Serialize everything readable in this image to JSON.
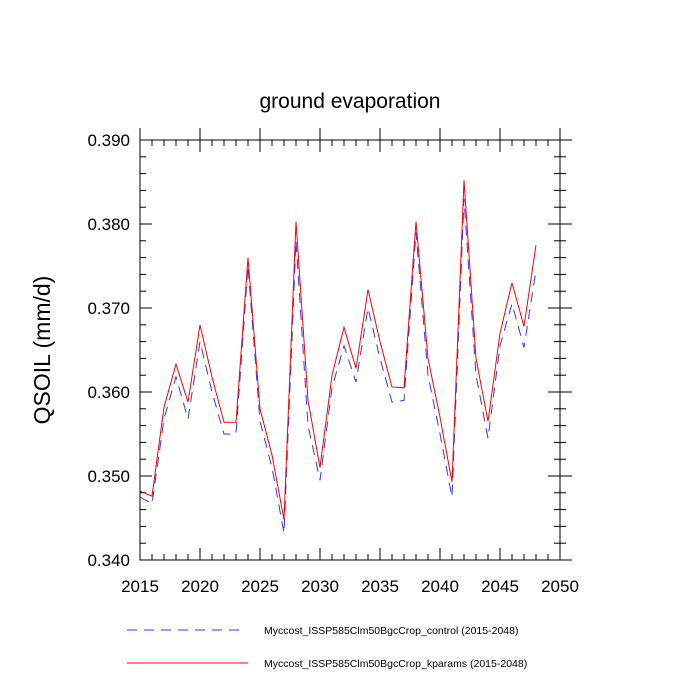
{
  "chart_data": {
    "type": "line",
    "title": "ground evaporation",
    "xlabel": "",
    "ylabel": "QSOIL  (mm/d)",
    "xlim": [
      2015,
      2050
    ],
    "ylim": [
      0.34,
      0.39
    ],
    "xticks": [
      2015,
      2020,
      2025,
      2030,
      2035,
      2040,
      2045,
      2050
    ],
    "xtick_labels": [
      "2015",
      "2020",
      "2025",
      "2030",
      "2035",
      "2040",
      "2045",
      "2050"
    ],
    "yticks": [
      0.34,
      0.35,
      0.36,
      0.37,
      0.38,
      0.39
    ],
    "ytick_labels": [
      "0.340",
      "0.350",
      "0.360",
      "0.370",
      "0.380",
      "0.390"
    ],
    "x": [
      2015,
      2016,
      2017,
      2018,
      2019,
      2020,
      2021,
      2022,
      2023,
      2024,
      2025,
      2026,
      2027,
      2028,
      2029,
      2030,
      2031,
      2032,
      2033,
      2034,
      2035,
      2036,
      2037,
      2038,
      2039,
      2040,
      2041,
      2042,
      2043,
      2044,
      2045,
      2046,
      2047,
      2048
    ],
    "series": [
      {
        "name": "Myccost_ISSP585Clm50BgcCrop_control (2015-2048)",
        "color": "#3333ff",
        "style": "dashed",
        "values": [
          0.3475,
          0.3467,
          0.3568,
          0.3618,
          0.3568,
          0.366,
          0.36,
          0.355,
          0.355,
          0.375,
          0.3565,
          0.351,
          0.3432,
          0.378,
          0.356,
          0.3495,
          0.3605,
          0.3655,
          0.3612,
          0.37,
          0.364,
          0.3588,
          0.359,
          0.379,
          0.362,
          0.355,
          0.3475,
          0.383,
          0.362,
          0.3545,
          0.3655,
          0.3705,
          0.3653,
          0.3745
        ]
      },
      {
        "name": "Myccost_ISSP585Clm50BgcCrop_kparams (2015-2048)",
        "color": "#ff0000",
        "style": "solid",
        "values": [
          0.3482,
          0.3476,
          0.3582,
          0.3633,
          0.3588,
          0.368,
          0.3618,
          0.3564,
          0.3564,
          0.376,
          0.358,
          0.3525,
          0.3448,
          0.3803,
          0.359,
          0.351,
          0.362,
          0.3677,
          0.3628,
          0.3722,
          0.366,
          0.3606,
          0.3605,
          0.3803,
          0.364,
          0.357,
          0.3493,
          0.3852,
          0.364,
          0.3565,
          0.367,
          0.373,
          0.3678,
          0.3775
        ]
      }
    ],
    "legend": {
      "position": "bottom",
      "entries": [
        "Myccost_ISSP585Clm50BgcCrop_control (2015-2048)",
        "Myccost_ISSP585Clm50BgcCrop_kparams (2015-2048)"
      ]
    }
  }
}
